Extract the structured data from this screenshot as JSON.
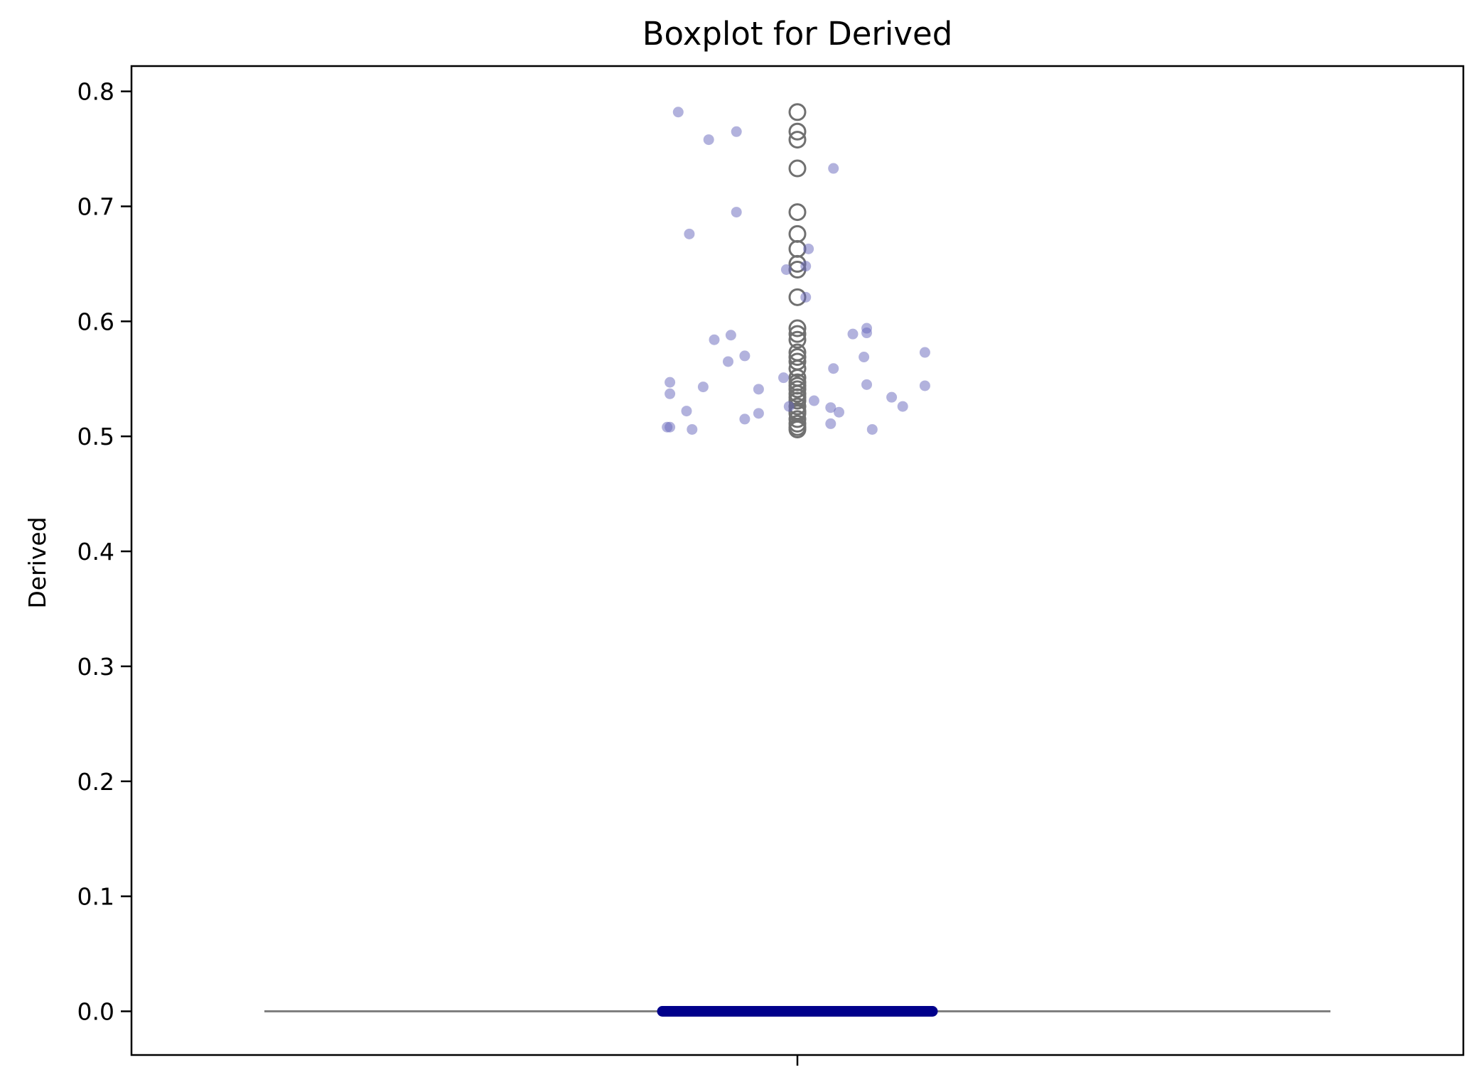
{
  "chart_data": {
    "type": "boxplot",
    "title": "Boxplot for Derived",
    "ylabel": "Derived",
    "xlabel": "",
    "ylim": [
      -0.038,
      0.822
    ],
    "yticks": [
      {
        "value": 0.0,
        "label": "0.0"
      },
      {
        "value": 0.1,
        "label": "0.1"
      },
      {
        "value": 0.2,
        "label": "0.2"
      },
      {
        "value": 0.3,
        "label": "0.3"
      },
      {
        "value": 0.4,
        "label": "0.4"
      },
      {
        "value": 0.5,
        "label": "0.5"
      },
      {
        "value": 0.6,
        "label": "0.6"
      },
      {
        "value": 0.7,
        "label": "0.7"
      },
      {
        "value": 0.8,
        "label": "0.8"
      }
    ],
    "grid": false,
    "box": {
      "q1": 0.0,
      "median": 0.0,
      "q3": 0.0,
      "whisker_low": 0.0,
      "whisker_high": 0.0
    },
    "outliers": [
      0.782,
      0.765,
      0.758,
      0.733,
      0.695,
      0.676,
      0.663,
      0.65,
      0.645,
      0.621,
      0.594,
      0.589,
      0.584,
      0.573,
      0.569,
      0.565,
      0.559,
      0.551,
      0.547,
      0.544,
      0.541,
      0.537,
      0.534,
      0.531,
      0.526,
      0.522,
      0.52,
      0.515,
      0.511,
      0.508,
      0.506
    ],
    "strip_points": [
      {
        "offset": -0.43,
        "y": 0.782
      },
      {
        "offset": -0.22,
        "y": 0.765
      },
      {
        "offset": -0.32,
        "y": 0.758
      },
      {
        "offset": 0.13,
        "y": 0.733
      },
      {
        "offset": -0.22,
        "y": 0.695
      },
      {
        "offset": -0.39,
        "y": 0.676
      },
      {
        "offset": 0.04,
        "y": 0.663
      },
      {
        "offset": -0.04,
        "y": 0.645
      },
      {
        "offset": 0.03,
        "y": 0.648
      },
      {
        "offset": 0.03,
        "y": 0.621
      },
      {
        "offset": -0.3,
        "y": 0.584
      },
      {
        "offset": -0.24,
        "y": 0.588
      },
      {
        "offset": 0.2,
        "y": 0.589
      },
      {
        "offset": 0.25,
        "y": 0.594
      },
      {
        "offset": 0.25,
        "y": 0.59
      },
      {
        "offset": 0.46,
        "y": 0.573
      },
      {
        "offset": -0.25,
        "y": 0.565
      },
      {
        "offset": -0.19,
        "y": 0.57
      },
      {
        "offset": 0.24,
        "y": 0.569
      },
      {
        "offset": 0.13,
        "y": 0.559
      },
      {
        "offset": -0.05,
        "y": 0.551
      },
      {
        "offset": -0.46,
        "y": 0.547
      },
      {
        "offset": -0.34,
        "y": 0.543
      },
      {
        "offset": -0.46,
        "y": 0.537
      },
      {
        "offset": -0.14,
        "y": 0.541
      },
      {
        "offset": 0.25,
        "y": 0.545
      },
      {
        "offset": 0.46,
        "y": 0.544
      },
      {
        "offset": 0.34,
        "y": 0.534
      },
      {
        "offset": 0.06,
        "y": 0.531
      },
      {
        "offset": -0.03,
        "y": 0.526
      },
      {
        "offset": 0.12,
        "y": 0.525
      },
      {
        "offset": 0.38,
        "y": 0.526
      },
      {
        "offset": -0.4,
        "y": 0.522
      },
      {
        "offset": -0.14,
        "y": 0.52
      },
      {
        "offset": 0.15,
        "y": 0.521
      },
      {
        "offset": -0.19,
        "y": 0.515
      },
      {
        "offset": 0.12,
        "y": 0.511
      },
      {
        "offset": -0.47,
        "y": 0.508
      },
      {
        "offset": -0.46,
        "y": 0.508
      },
      {
        "offset": -0.38,
        "y": 0.506
      },
      {
        "offset": 0.27,
        "y": 0.506
      }
    ],
    "colors": {
      "box": "#00008b",
      "whisker": "#808080",
      "outlier": "#707070",
      "strip": "#6666bb"
    }
  }
}
